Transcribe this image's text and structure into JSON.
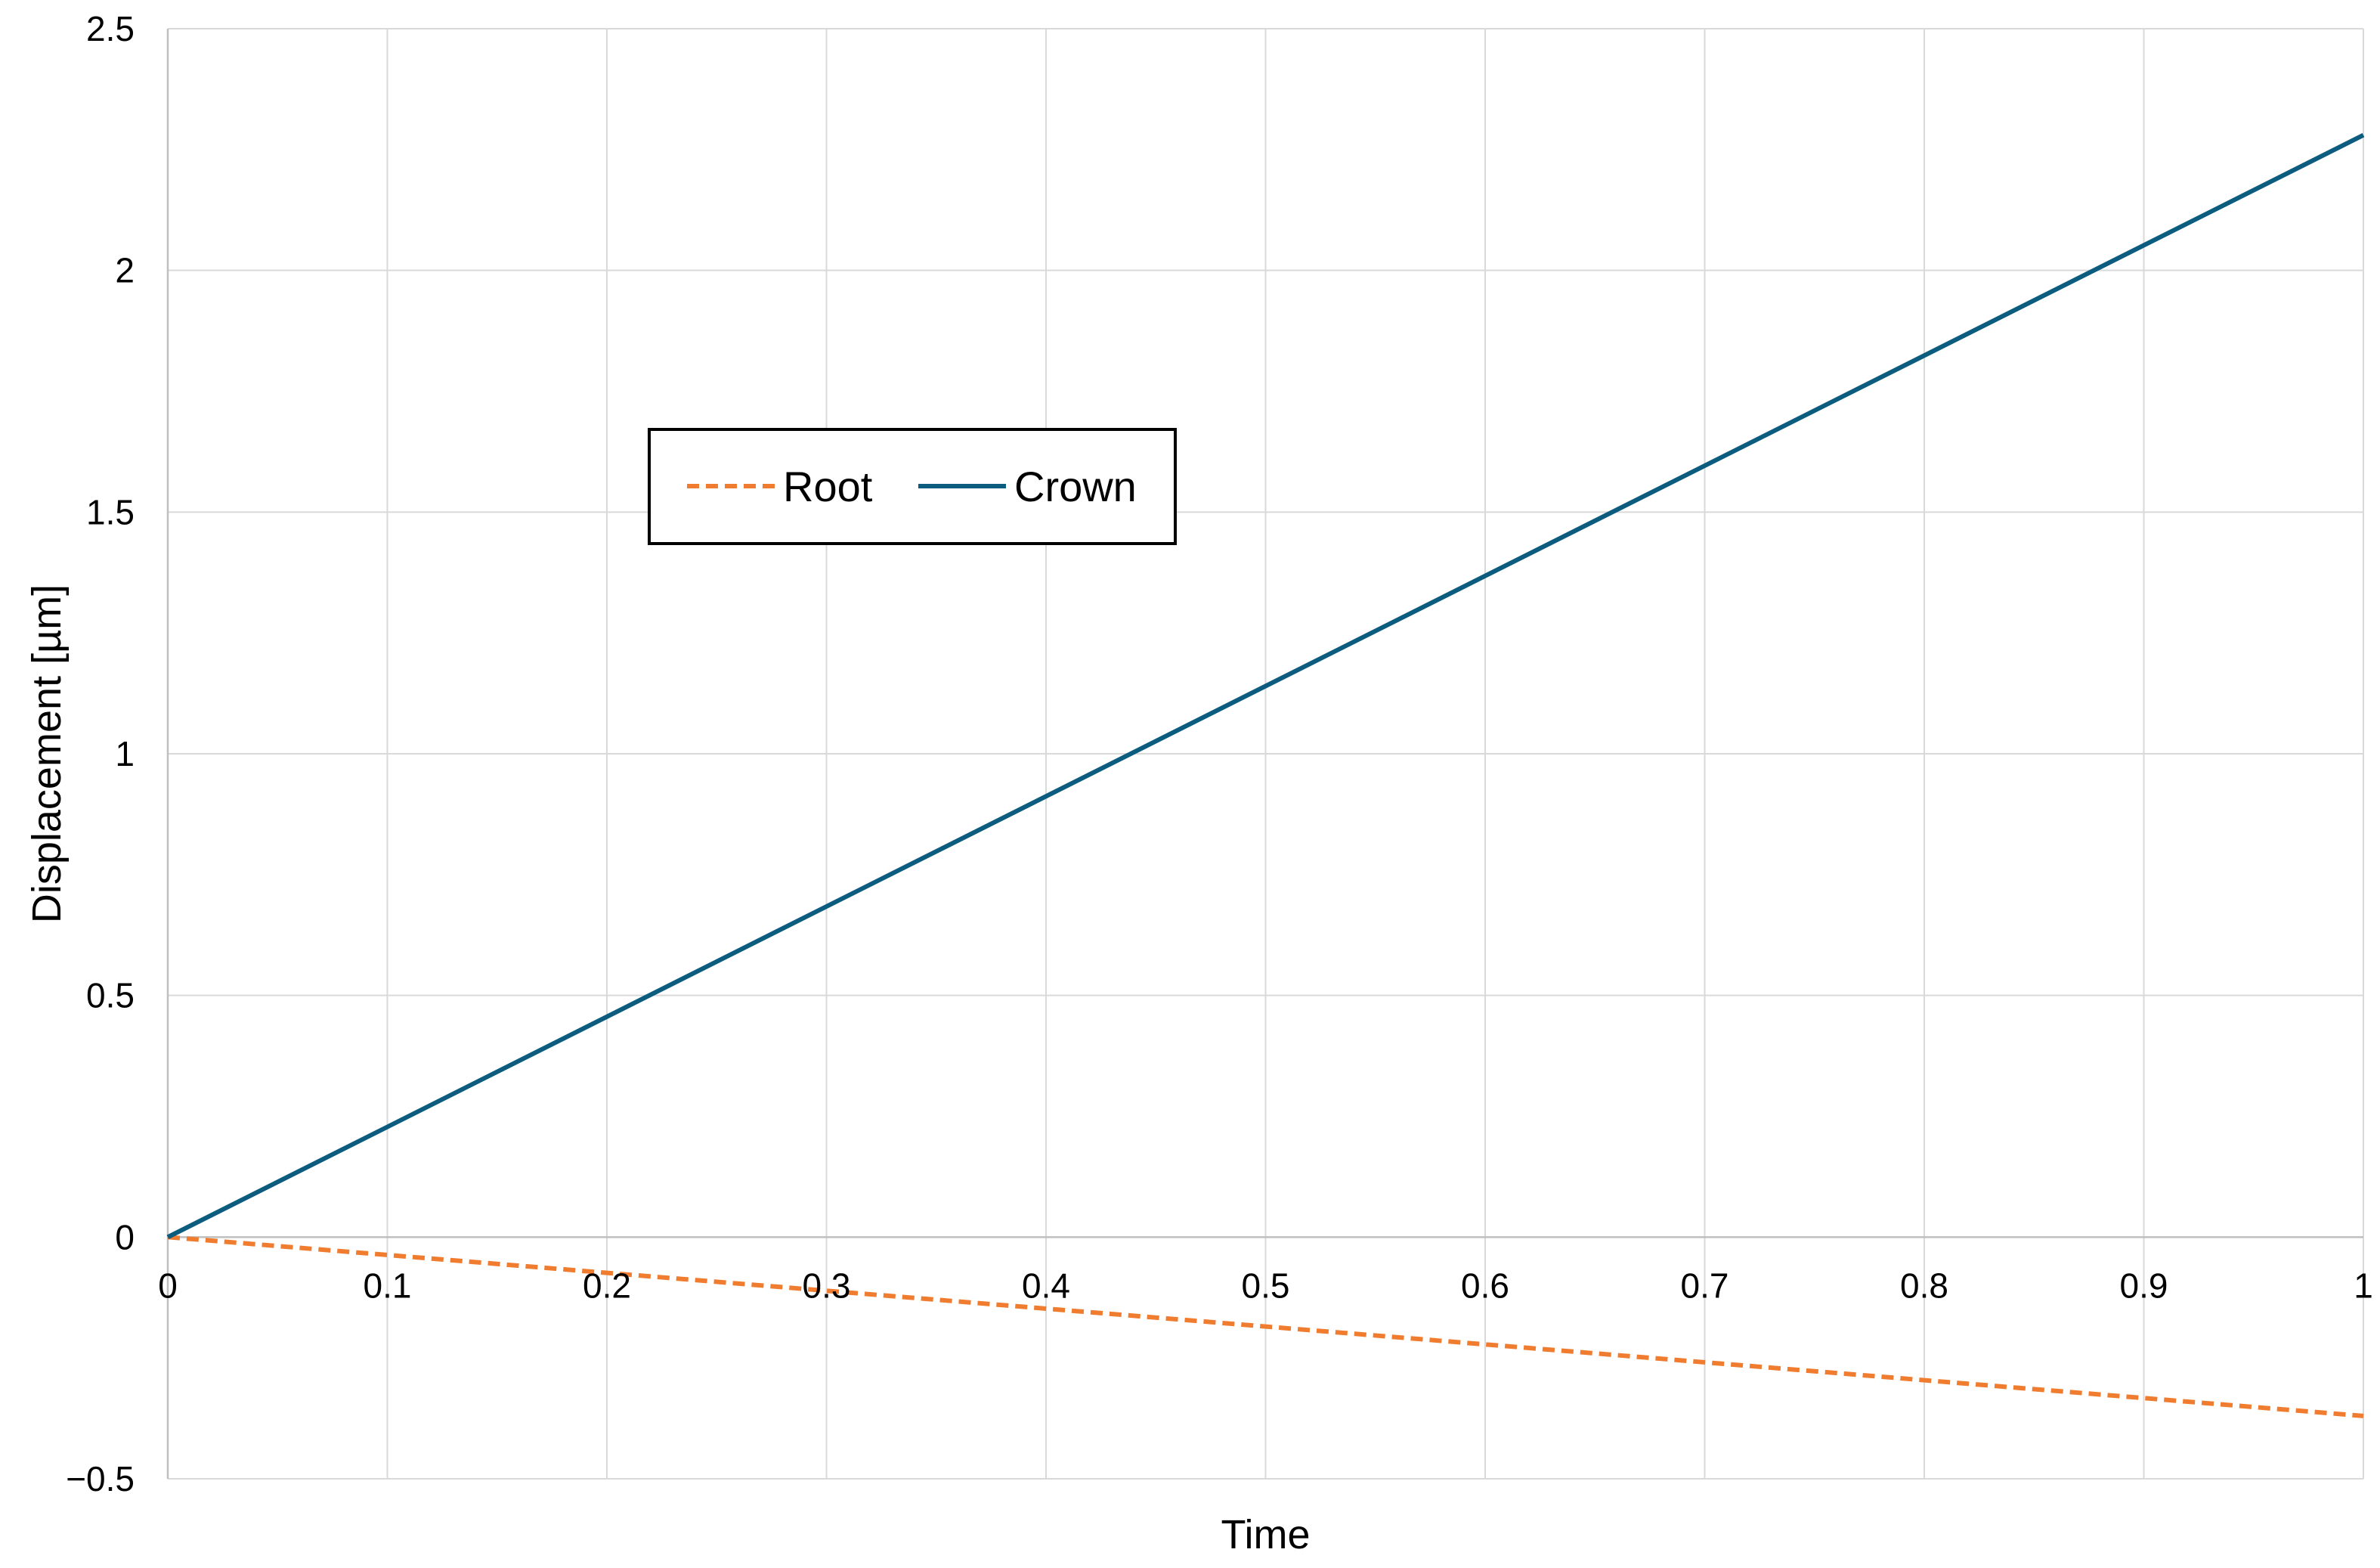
{
  "chart_data": {
    "type": "line",
    "xlabel": "Time",
    "ylabel": "Displacement [µm]",
    "xlim": [
      0,
      1
    ],
    "ylim": [
      -0.5,
      2.5
    ],
    "x_ticks": [
      "0",
      "0.1",
      "0.2",
      "0.3",
      "0.4",
      "0.5",
      "0.6",
      "0.7",
      "0.8",
      "0.9",
      "1"
    ],
    "y_ticks": [
      "−0.5",
      "0",
      "0.5",
      "1",
      "1.5",
      "2",
      "2.5"
    ],
    "grid": true,
    "legend": "upper-left inside plot area",
    "series": [
      {
        "name": "Root",
        "x": [
          0,
          1
        ],
        "y": [
          0,
          -0.37
        ],
        "color": "#F07C2F",
        "style": "dashed"
      },
      {
        "name": "Crown",
        "x": [
          0,
          1
        ],
        "y": [
          0,
          2.28
        ],
        "color": "#0B5C7E",
        "style": "solid"
      }
    ]
  }
}
